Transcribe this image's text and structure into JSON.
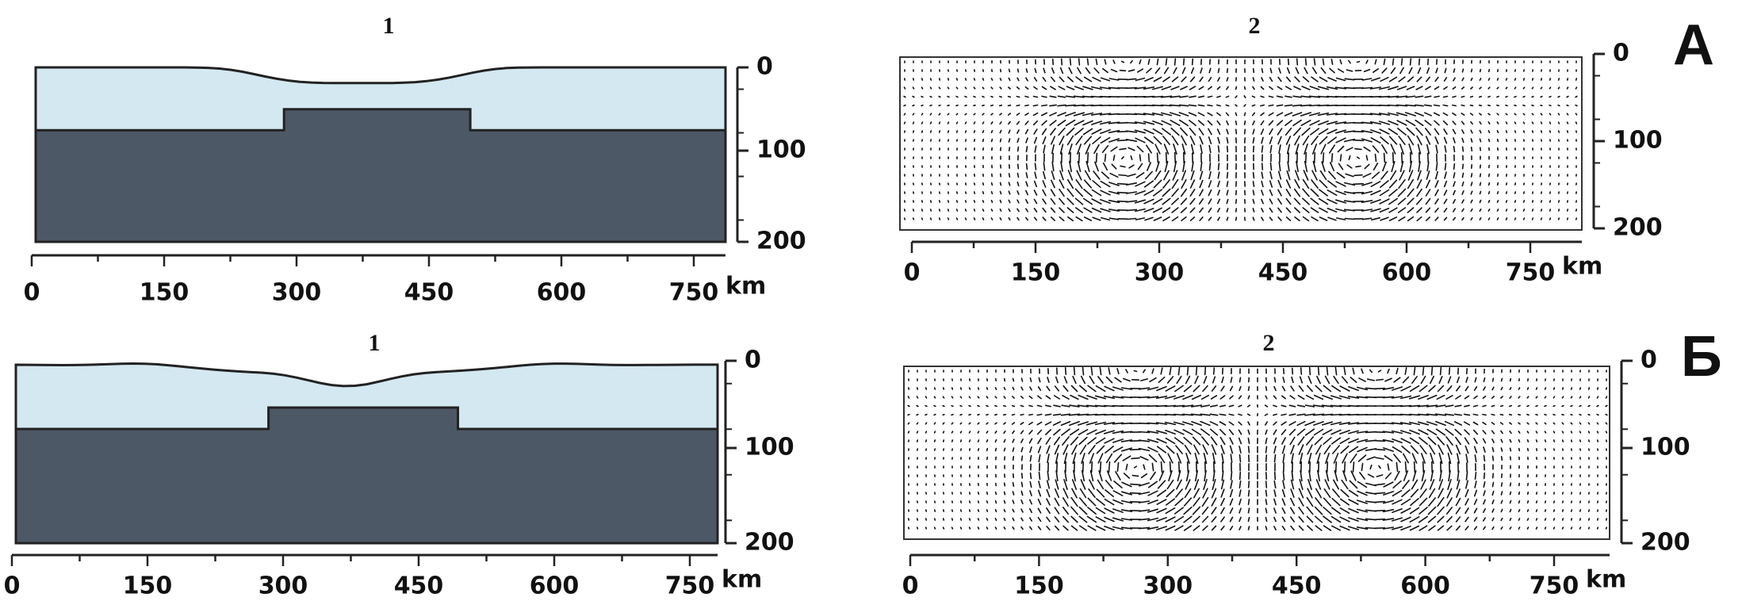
{
  "row_labels": [
    "А",
    "Б"
  ],
  "panels": [
    {
      "title": "1",
      "x_ticks": [
        "0",
        "150",
        "300",
        "450",
        "600",
        "750"
      ],
      "x_unit": "km",
      "y_ticks": [
        "0",
        "100",
        "200"
      ]
    },
    {
      "title": "2",
      "x_ticks": [
        "0",
        "150",
        "300",
        "450",
        "600",
        "750"
      ],
      "x_unit": "km",
      "y_ticks": [
        "0",
        "100",
        "200"
      ]
    },
    {
      "title": "1",
      "x_ticks": [
        "0",
        "150",
        "300",
        "450",
        "600",
        "750"
      ],
      "x_unit": "km",
      "y_ticks": [
        "0",
        "100",
        "200"
      ]
    },
    {
      "title": "2",
      "x_ticks": [
        "0",
        "150",
        "300",
        "450",
        "600",
        "750"
      ],
      "x_unit": "km",
      "y_ticks": [
        "0",
        "100",
        "200"
      ]
    }
  ]
}
